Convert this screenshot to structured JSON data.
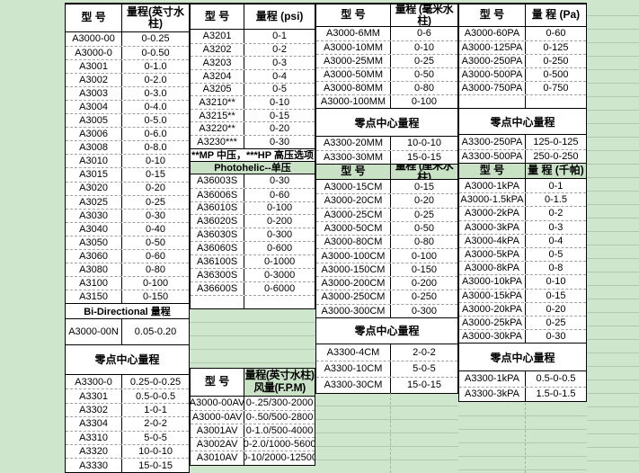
{
  "page": {
    "background": "#cee7cc",
    "cell_background": "#ffffff",
    "green_cell_background": "#c9e2c5",
    "border_color": "#000000"
  },
  "groups": [
    {
      "name": "inch-water-column",
      "sections": [
        {
          "kind": "head",
          "model": "型 号",
          "range": "量程(英寸水柱)"
        },
        {
          "kind": "rows",
          "rows": [
            [
              "A3000-00",
              "0-0.25"
            ],
            [
              "A3000-0",
              "0-0.50"
            ],
            [
              "A3001",
              "0-1.0"
            ],
            [
              "A3002",
              "0-2.0"
            ],
            [
              "A3003",
              "0-3.0"
            ],
            [
              "A3004",
              "0-4.0"
            ],
            [
              "A3005",
              "0-5.0"
            ],
            [
              "A3006",
              "0-6.0"
            ],
            [
              "A3008",
              "0-8.0"
            ],
            [
              "A3010",
              "0-10"
            ],
            [
              "A3015",
              "0-15"
            ],
            [
              "A3020",
              "0-20"
            ],
            [
              "A3025",
              "0-25"
            ],
            [
              "A3030",
              "0-30"
            ],
            [
              "A3040",
              "0-40"
            ],
            [
              "A3050",
              "0-50"
            ],
            [
              "A3060",
              "0-60"
            ],
            [
              "A3080",
              "0-80"
            ],
            [
              "A3100",
              "0-100"
            ],
            [
              "A3150",
              "0-150"
            ]
          ]
        },
        {
          "kind": "band",
          "text": "Bi-Directional 量程",
          "latin": true
        },
        {
          "kind": "rows",
          "rows": [
            [
              "A3000-00N",
              "0.05-0.20"
            ]
          ]
        },
        {
          "kind": "band",
          "text": "零点中心量程"
        },
        {
          "kind": "rows",
          "rows": [
            [
              "A3300-0",
              "0.25-0-0.25"
            ],
            [
              "A3301",
              "0.5-0-0.5"
            ],
            [
              "A3302",
              "1-0-1"
            ],
            [
              "A3304",
              "2-0-2"
            ],
            [
              "A3310",
              "5-0-5"
            ],
            [
              "A3320",
              "10-0-10"
            ],
            [
              "A3330",
              "15-0-15"
            ]
          ]
        }
      ]
    },
    {
      "name": "psi",
      "sections": [
        {
          "kind": "head",
          "model": "型 号",
          "range": "量程 (psi)"
        },
        {
          "kind": "rows",
          "rows": [
            [
              "A3201",
              "0-1"
            ],
            [
              "A3202",
              "0-2"
            ],
            [
              "A3203",
              "0-3"
            ],
            [
              "A3204",
              "0-4"
            ],
            [
              "A3205",
              "0-5"
            ],
            [
              "A3210**",
              "0-10"
            ],
            [
              "A3215**",
              "0-15"
            ],
            [
              "A3220**",
              "0-20"
            ],
            [
              "A3230***",
              "0-30"
            ]
          ]
        },
        {
          "kind": "band",
          "text": "**MP 中压，***HP 高压选项",
          "latin": true
        },
        {
          "kind": "band",
          "text": "Photohelic--单压",
          "green": true,
          "latin": true
        },
        {
          "kind": "rows",
          "rows": [
            [
              "A36003S",
              "0-30"
            ],
            [
              "A36006S",
              "0-60"
            ],
            [
              "A36010S",
              "0-100"
            ],
            [
              "A36020S",
              "0-200"
            ],
            [
              "A36030S",
              "0-300"
            ],
            [
              "A36060S",
              "0-600"
            ],
            [
              "A36100S",
              "0-1000"
            ],
            [
              "A36300S",
              "0-3000"
            ],
            [
              "A36600S",
              "0-6000"
            ],
            [
              "",
              ""
            ]
          ]
        },
        {
          "kind": "gap"
        },
        {
          "kind": "head",
          "model": "型 号",
          "range": "量程(英寸水柱)",
          "range2": "风量(F.P.M)",
          "range_green": true
        },
        {
          "kind": "rows",
          "rows": [
            [
              "A3000-00AV",
              "0-.25/300-2000"
            ],
            [
              "A3000-0AV",
              "0-.50/500-2800"
            ],
            [
              "A3001AV",
              "0-1.0/500-4000"
            ],
            [
              "A3002AV",
              "0-2.0/1000-5600"
            ],
            [
              "A3010AV",
              "0-10/2000-12500"
            ]
          ]
        }
      ]
    },
    {
      "name": "mm-water-column",
      "sections": [
        {
          "kind": "head",
          "model": "型 号",
          "range": "量程 (毫米水柱)",
          "range_small": true
        },
        {
          "kind": "rows",
          "rows": [
            [
              "A3000-6MM",
              "0-6"
            ],
            [
              "A3000-10MM",
              "0-10"
            ],
            [
              "A3000-25MM",
              "0-25"
            ],
            [
              "A3000-50MM",
              "0-50"
            ],
            [
              "A3000-80MM",
              "0-80"
            ],
            [
              "A3000-100MM",
              "0-100"
            ]
          ]
        },
        {
          "kind": "band",
          "text": "零点中心量程"
        },
        {
          "kind": "rows",
          "rows": [
            [
              "A3300-20MM",
              "10-0-10"
            ],
            [
              "A3300-30MM",
              "15-0-15"
            ]
          ]
        },
        {
          "kind": "head",
          "model": "型 号",
          "range": "量程 (厘米水柱)",
          "green": true,
          "range_small": true
        },
        {
          "kind": "rows",
          "rows": [
            [
              "A3000-15CM",
              "0-15"
            ],
            [
              "A3000-20CM",
              "0-20"
            ],
            [
              "A3000-25CM",
              "0-25"
            ],
            [
              "A3000-50CM",
              "0-50"
            ],
            [
              "A3000-80CM",
              "0-80"
            ],
            [
              "A3000-100CM",
              "0-100"
            ],
            [
              "A3000-150CM",
              "0-150"
            ],
            [
              "A3000-200CM",
              "0-200"
            ],
            [
              "A3000-250CM",
              "0-250"
            ],
            [
              "A3000-300CM",
              "0-300"
            ]
          ]
        },
        {
          "kind": "band",
          "text": "零点中心量程"
        },
        {
          "kind": "rows",
          "rows": [
            [
              "A3300-4CM",
              "2-0-2"
            ],
            [
              "A3300-10CM",
              "5-0-5"
            ],
            [
              "A3300-30CM",
              "15-0-15"
            ]
          ]
        }
      ]
    },
    {
      "name": "pa",
      "sections": [
        {
          "kind": "head",
          "model": "型 号",
          "range": "量 程 (Pa)"
        },
        {
          "kind": "rows",
          "rows": [
            [
              "A3000-60PA",
              "0-60"
            ],
            [
              "A3000-125PA",
              "0-125"
            ],
            [
              "A3000-250PA",
              "0-250"
            ],
            [
              "A3000-500PA",
              "0-500"
            ],
            [
              "A3000-750PA",
              "0-750"
            ],
            [
              "",
              ""
            ]
          ]
        },
        {
          "kind": "band",
          "text": "零点中心量程"
        },
        {
          "kind": "rows",
          "rows": [
            [
              "A3300-250PA",
              "125-0-125"
            ],
            [
              "A3300-500PA",
              "250-0-250"
            ]
          ]
        },
        {
          "kind": "head",
          "model": "型 号",
          "range": "量 程 (千帕)",
          "green": true
        },
        {
          "kind": "rows",
          "rows": [
            [
              "A3000-1kPA",
              "0-1"
            ],
            [
              "A3000-1.5kPA",
              "0-1.5"
            ],
            [
              "A3000-2kPA",
              "0-2"
            ],
            [
              "A3000-3kPA",
              "0-3"
            ],
            [
              "A3000-4kPA",
              "0-4"
            ],
            [
              "A3000-5kPA",
              "0-5"
            ],
            [
              "A3000-8kPA",
              "0-8"
            ],
            [
              "A3000-10kPA",
              "0-10"
            ],
            [
              "A3000-15kPA",
              "0-15"
            ],
            [
              "A3000-20kPA",
              "0-20"
            ],
            [
              "A3000-25kPA",
              "0-25"
            ],
            [
              "A3000-30kPA",
              "0-30"
            ]
          ]
        },
        {
          "kind": "band",
          "text": "零点中心量程"
        },
        {
          "kind": "rows",
          "rows": [
            [
              "A3300-1kPA",
              "0.5-0-0.5"
            ],
            [
              "A3300-3kPA",
              "1.5-0-1.5"
            ]
          ]
        }
      ]
    }
  ]
}
